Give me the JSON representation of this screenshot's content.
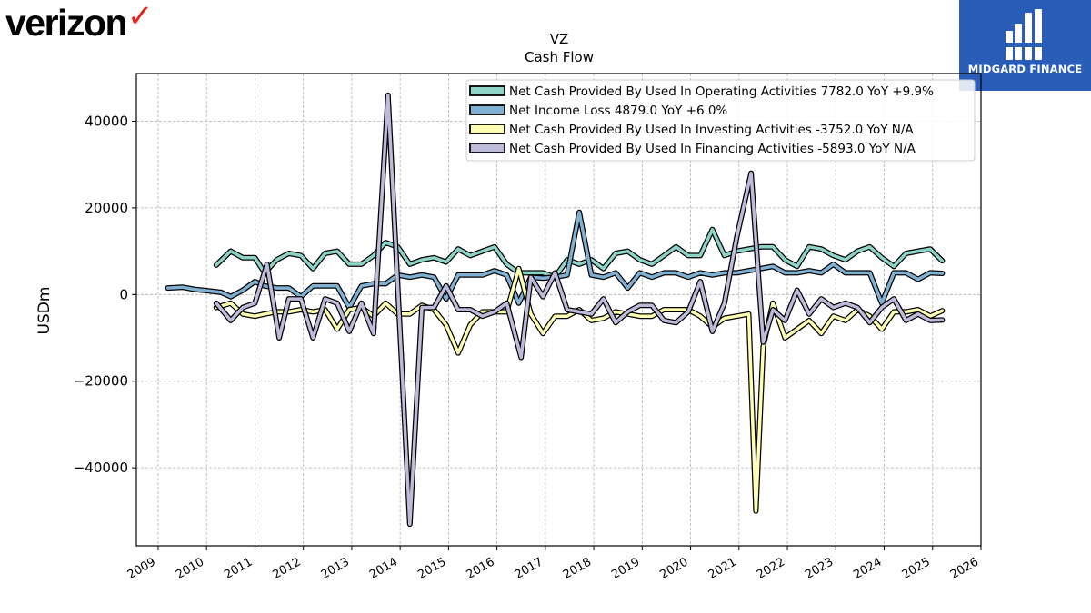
{
  "brand": {
    "name": "verizon",
    "check": "✓",
    "check_color": "#e3221b",
    "badge_color": "#2a5db8",
    "badge_text": "MIDGARD FINANCE"
  },
  "chart_data": {
    "type": "line",
    "title": "VZ",
    "subtitle": "Cash Flow",
    "xlabel": "",
    "ylabel": "USDm",
    "grid": true,
    "legend_position": "top-right",
    "x_ticks": [
      "2009",
      "2010",
      "2011",
      "2012",
      "2013",
      "2014",
      "2015",
      "2016",
      "2017",
      "2018",
      "2019",
      "2020",
      "2021",
      "2022",
      "2023",
      "2024",
      "2025",
      "2026"
    ],
    "y_ticks": [
      -40000,
      -20000,
      0,
      20000,
      40000
    ],
    "y_tick_labels": [
      "−40000",
      "−20000",
      "0",
      "20000",
      "40000"
    ],
    "xlim": [
      2008.55,
      2026.0
    ],
    "ylim": [
      -58000,
      51000
    ],
    "series": [
      {
        "name": "Net Cash Provided By Used In Operating Activities",
        "legend": "Net Cash Provided By Used In Operating Activities  7782.0 YoY +9.9%",
        "color": "#8dd3c7",
        "x": [
          2010.2,
          2010.5,
          2010.75,
          2011.0,
          2011.2,
          2011.45,
          2011.7,
          2011.95,
          2012.2,
          2012.45,
          2012.7,
          2012.95,
          2013.2,
          2013.45,
          2013.7,
          2013.95,
          2014.2,
          2014.45,
          2014.7,
          2014.95,
          2015.2,
          2015.45,
          2015.7,
          2015.95,
          2016.2,
          2016.45,
          2016.7,
          2016.95,
          2017.2,
          2017.45,
          2017.7,
          2017.95,
          2018.2,
          2018.45,
          2018.7,
          2018.95,
          2019.2,
          2019.45,
          2019.7,
          2019.95,
          2020.2,
          2020.45,
          2020.7,
          2020.95,
          2021.2,
          2021.45,
          2021.7,
          2021.95,
          2022.2,
          2022.45,
          2022.7,
          2022.95,
          2023.2,
          2023.45,
          2023.7,
          2023.95,
          2024.2,
          2024.45,
          2024.7,
          2024.95,
          2025.2
        ],
        "values": [
          6800,
          10000,
          8500,
          8500,
          5000,
          8000,
          9500,
          9000,
          6000,
          9500,
          10000,
          7000,
          7000,
          9000,
          12000,
          11000,
          7000,
          8000,
          8500,
          7500,
          10500,
          9000,
          10000,
          11000,
          7000,
          5000,
          5000,
          5000,
          4000,
          8000,
          7000,
          8000,
          6000,
          9500,
          10000,
          8000,
          7000,
          9000,
          11000,
          9000,
          9000,
          15000,
          9000,
          10000,
          10500,
          11000,
          11000,
          8000,
          6500,
          11000,
          10500,
          9000,
          8000,
          10000,
          11000,
          8500,
          6500,
          9500,
          10000,
          10500,
          7782
        ]
      },
      {
        "name": "Net Income Loss",
        "legend": "Net Income Loss  4879.0 YoY +6.0%",
        "color": "#80b1d3",
        "x": [
          2009.2,
          2009.5,
          2009.75,
          2010.0,
          2010.3,
          2010.5,
          2010.75,
          2011.0,
          2011.2,
          2011.45,
          2011.7,
          2011.95,
          2012.2,
          2012.45,
          2012.7,
          2012.95,
          2013.2,
          2013.45,
          2013.7,
          2013.95,
          2014.2,
          2014.45,
          2014.7,
          2014.95,
          2015.2,
          2015.45,
          2015.7,
          2015.95,
          2016.2,
          2016.45,
          2016.7,
          2016.95,
          2017.2,
          2017.45,
          2017.7,
          2017.95,
          2018.2,
          2018.45,
          2018.7,
          2018.95,
          2019.2,
          2019.45,
          2019.7,
          2019.95,
          2020.2,
          2020.45,
          2020.7,
          2020.95,
          2021.2,
          2021.45,
          2021.7,
          2021.95,
          2022.2,
          2022.45,
          2022.7,
          2022.95,
          2023.2,
          2023.45,
          2023.7,
          2023.95,
          2024.2,
          2024.45,
          2024.7,
          2024.95,
          2025.2
        ],
        "values": [
          1500,
          1700,
          1200,
          900,
          500,
          -500,
          1000,
          3000,
          2000,
          1500,
          1500,
          -500,
          2000,
          2000,
          2000,
          -3000,
          2000,
          2500,
          2500,
          4500,
          4000,
          4500,
          4000,
          -1000,
          4500,
          4500,
          4500,
          5500,
          4500,
          -2000,
          4000,
          3800,
          4000,
          4500,
          19000,
          4500,
          4000,
          5000,
          1500,
          5000,
          4000,
          5000,
          5000,
          4000,
          5000,
          4500,
          5000,
          5000,
          5500,
          6000,
          6500,
          5000,
          5000,
          5500,
          5000,
          7000,
          5000,
          5000,
          5000,
          -2000,
          5000,
          5000,
          3500,
          5000,
          4879
        ]
      },
      {
        "name": "Net Cash Provided By Used In Investing Activities",
        "legend": "Net Cash Provided By Used In Investing Activities  -3752.0 YoY N/A",
        "color": "#ffffb3",
        "x": [
          2010.2,
          2010.5,
          2010.75,
          2011.0,
          2011.2,
          2011.45,
          2011.7,
          2011.95,
          2012.2,
          2012.45,
          2012.7,
          2012.95,
          2013.2,
          2013.45,
          2013.7,
          2013.95,
          2014.2,
          2014.45,
          2014.7,
          2014.95,
          2015.2,
          2015.45,
          2015.7,
          2015.95,
          2016.2,
          2016.45,
          2016.7,
          2016.95,
          2017.2,
          2017.45,
          2017.7,
          2017.95,
          2018.2,
          2018.45,
          2018.7,
          2018.95,
          2019.2,
          2019.45,
          2019.7,
          2019.95,
          2020.2,
          2020.45,
          2020.7,
          2020.95,
          2021.2,
          2021.35,
          2021.5,
          2021.7,
          2021.95,
          2022.2,
          2022.45,
          2022.7,
          2022.95,
          2023.2,
          2023.45,
          2023.7,
          2023.95,
          2024.2,
          2024.45,
          2024.7,
          2024.95,
          2025.2
        ],
        "values": [
          -3000,
          -2000,
          -4500,
          -5000,
          -4500,
          -4000,
          -4000,
          -3500,
          -4000,
          -3500,
          -8000,
          -3500,
          -3000,
          -5000,
          -2000,
          -4500,
          -4500,
          -2500,
          -3500,
          -7000,
          -13500,
          -7000,
          -4000,
          -4000,
          -4000,
          6000,
          -4500,
          -9000,
          -5000,
          -5000,
          -3500,
          -6000,
          -5500,
          -4000,
          -4500,
          -5000,
          -5000,
          -3500,
          -3500,
          -3500,
          -5000,
          -7500,
          -5500,
          -5000,
          -4500,
          -50000,
          -12000,
          -2000,
          -10000,
          -8000,
          -6000,
          -9000,
          -5000,
          -6000,
          -3500,
          -5000,
          -8000,
          -4000,
          -4000,
          -3500,
          -5000,
          -3752
        ]
      },
      {
        "name": "Net Cash Provided By Used In Financing Activities",
        "legend": "Net Cash Provided By Used In Financing Activities  -5893.0 YoY N/A",
        "color": "#bebada",
        "x": [
          2010.2,
          2010.5,
          2010.75,
          2011.0,
          2011.25,
          2011.5,
          2011.7,
          2011.95,
          2012.2,
          2012.45,
          2012.7,
          2012.95,
          2013.2,
          2013.45,
          2013.75,
          2014.2,
          2014.45,
          2014.7,
          2014.95,
          2015.2,
          2015.45,
          2015.7,
          2015.95,
          2016.2,
          2016.5,
          2016.7,
          2016.95,
          2017.2,
          2017.45,
          2017.7,
          2017.95,
          2018.2,
          2018.45,
          2018.7,
          2018.95,
          2019.2,
          2019.45,
          2019.7,
          2019.95,
          2020.2,
          2020.45,
          2020.7,
          2020.95,
          2021.25,
          2021.5,
          2021.7,
          2021.95,
          2022.2,
          2022.45,
          2022.7,
          2022.95,
          2023.2,
          2023.45,
          2023.7,
          2023.95,
          2024.2,
          2024.45,
          2024.7,
          2024.95,
          2025.2
        ],
        "values": [
          -2000,
          -6000,
          -3000,
          -2000,
          7000,
          -10000,
          -1000,
          -1000,
          -10000,
          -1000,
          -2000,
          -8500,
          -2000,
          -9000,
          46000,
          -53000,
          -3000,
          -3000,
          2000,
          -3500,
          -3500,
          -5000,
          -4000,
          -2000,
          -14500,
          4000,
          -500,
          5000,
          -3500,
          -4000,
          -4500,
          -1000,
          -6500,
          -4000,
          -2500,
          -2500,
          -6000,
          -6500,
          -4000,
          3000,
          -8500,
          -2000,
          13000,
          28000,
          -11000,
          -3500,
          -6000,
          1000,
          -4500,
          -1000,
          -3000,
          -2000,
          -3000,
          -6500,
          -3000,
          -1000,
          -6000,
          -4500,
          -6000,
          -5893
        ]
      }
    ]
  }
}
